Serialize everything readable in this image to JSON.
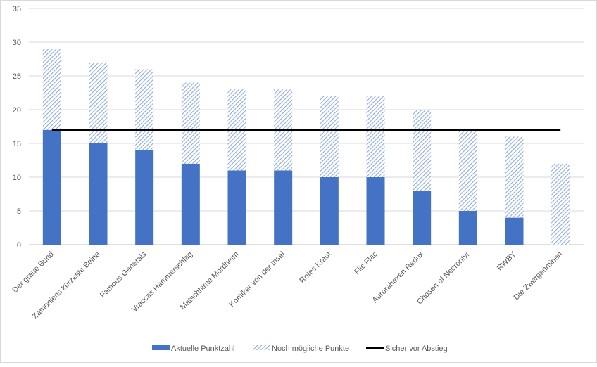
{
  "chart_data": {
    "type": "bar",
    "stacked": true,
    "title": "",
    "categories": [
      "Der graue Bund",
      "Zamoniens kürzeste Beine",
      "Famous Generals",
      "Vraccas Hammerschlag",
      "Matschhirne Mordheim",
      "Komiker von der Insel",
      "Rotes Kraut",
      "Flic Flac",
      "Aurorahexen Redux",
      "Chosen of Necrontyr",
      "RWBY",
      "Die Zwergenminen"
    ],
    "series": [
      {
        "name": "Aktuelle Punktzahl",
        "type": "bar",
        "color": "#4472C4",
        "values": [
          17,
          15,
          14,
          12,
          11,
          11,
          10,
          10,
          8,
          5,
          4,
          0
        ]
      },
      {
        "name": "Noch mögliche Punkte",
        "type": "bar-hatched",
        "color": "#8FAADC",
        "values": [
          12,
          12,
          12,
          12,
          12,
          12,
          12,
          12,
          12,
          12,
          12,
          12
        ]
      },
      {
        "name": "Sicher vor Abstieg",
        "type": "line",
        "color": "#000000",
        "values": [
          17,
          17,
          17,
          17,
          17,
          17,
          17,
          17,
          17,
          17,
          17,
          17
        ]
      }
    ],
    "ylim": [
      0,
      35
    ],
    "yticks": [
      0,
      5,
      10,
      15,
      20,
      25,
      30,
      35
    ],
    "grid": true,
    "legend": "bottom"
  }
}
